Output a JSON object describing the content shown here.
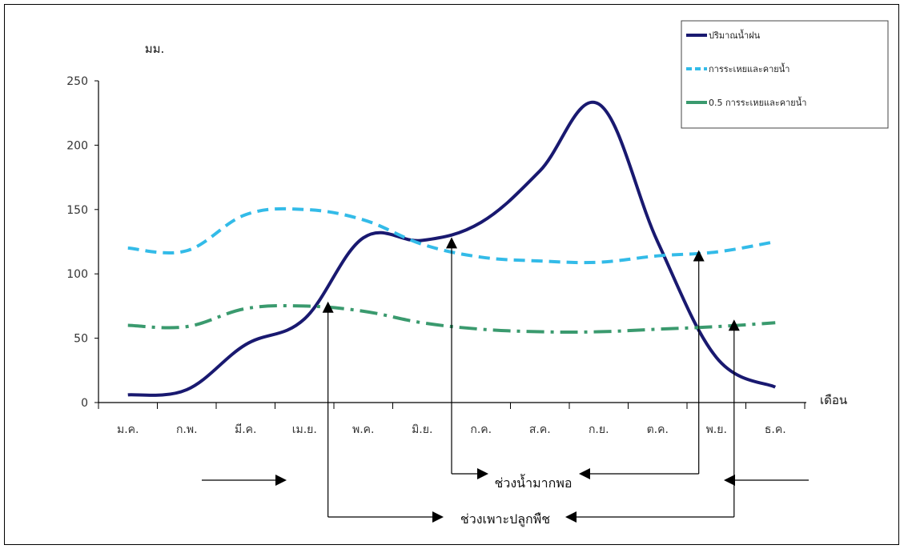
{
  "chart_data": {
    "type": "line",
    "ylabel": "มม.",
    "xlabel": "เดือน",
    "ylim": [
      0,
      250
    ],
    "yticks": [
      "0",
      "50",
      "100",
      "150",
      "200",
      "250"
    ],
    "categories": [
      "ม.ค.",
      "ก.พ.",
      "มี.ค.",
      "เม.ย.",
      "พ.ค.",
      "มิ.ย.",
      "ก.ค.",
      "ส.ค.",
      "ก.ย.",
      "ต.ค.",
      "พ.ย.",
      "ธ.ค."
    ],
    "legend_position": "top-right",
    "series": [
      {
        "name": "ปริมาณน้ำฝน",
        "color": "#191970",
        "style": "solid",
        "values": [
          6,
          10,
          45,
          65,
          128,
          126,
          140,
          180,
          232,
          125,
          35,
          12
        ]
      },
      {
        "name": "การระเหยและคายน้ำ",
        "color": "#33bbe8",
        "style": "dashed",
        "values": [
          120,
          118,
          146,
          150,
          142,
          123,
          113,
          110,
          109,
          114,
          117,
          125
        ]
      },
      {
        "name": "0.5 การระเหยและคายน้ำ",
        "color": "#3a9a6e",
        "style": "dashdot",
        "values": [
          60,
          59,
          73,
          75,
          71,
          62,
          57,
          55,
          55,
          57,
          59,
          62
        ]
      }
    ],
    "annotations": [
      {
        "label": "ช่วงน้ำมากพอ",
        "from_month": 5.5,
        "to_month": 9.7
      },
      {
        "label": "ช่วงเพาะปลูกพืช",
        "from_month": 3.4,
        "to_month": 10.3
      }
    ]
  }
}
